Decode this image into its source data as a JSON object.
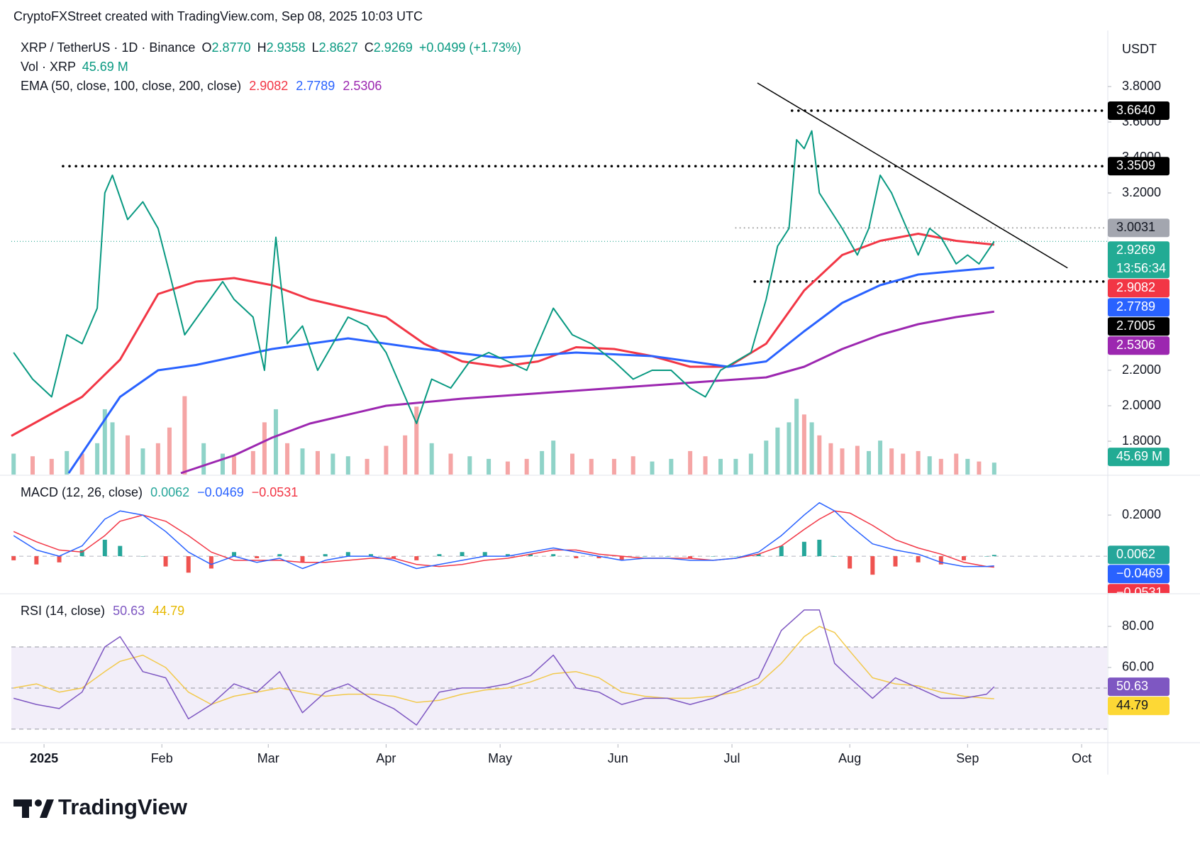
{
  "header": {
    "attribution": "CryptoFXStreet created with TradingView.com, Sep 08, 2025 10:03 UTC",
    "symbol": "XRP / TetherUS · 1D · Binance",
    "ohlc": [
      {
        "label": "O",
        "value": "2.8770"
      },
      {
        "label": "H",
        "value": "2.9358"
      },
      {
        "label": "L",
        "value": "2.8627"
      },
      {
        "label": "C",
        "value": "2.9269"
      }
    ],
    "change": "+0.0499 (+1.73%)",
    "volume_label": "Vol · XRP",
    "volume_value": "45.69 M",
    "ema_label": "EMA (50, close, 100, close, 200, close)",
    "ema_values": [
      "2.9082",
      "2.7789",
      "2.5306"
    ],
    "currency": "USDT",
    "countdown": "13:56:34"
  },
  "logo": "TradingView",
  "chart_data": [
    {
      "type": "line",
      "xlim": [
        -8.6,
        279.7
      ],
      "xticks": [
        {
          "value": 0,
          "label": "2025"
        },
        {
          "value": 31,
          "label": "Feb"
        },
        {
          "value": 59,
          "label": "Mar"
        },
        {
          "value": 90,
          "label": "Apr"
        },
        {
          "value": 120,
          "label": "May"
        },
        {
          "value": 151,
          "label": "Jun"
        },
        {
          "value": 181,
          "label": "Jul"
        },
        {
          "value": 212,
          "label": "Aug"
        },
        {
          "value": 243,
          "label": "Sep"
        },
        {
          "value": 273,
          "label": "Oct"
        }
      ],
      "ylim": [
        1.612,
        4.116
      ],
      "yticks": [
        {
          "value": 1.8,
          "label": "1.8000"
        },
        {
          "value": 2.0,
          "label": "2.0000"
        },
        {
          "value": 2.2,
          "label": "2.2000"
        },
        {
          "value": 3.2,
          "label": "3.2000"
        },
        {
          "value": 3.4,
          "label": "3.4000"
        },
        {
          "value": 3.6,
          "label": "3.6000"
        },
        {
          "value": 3.8,
          "label": "3.8000"
        }
      ],
      "price": {
        "color": "#089981",
        "x": [
          -8,
          -3,
          2,
          6,
          10,
          14,
          16,
          18,
          22,
          26,
          30,
          33,
          37,
          42,
          47,
          50,
          55,
          58,
          61,
          64,
          68,
          72,
          76,
          80,
          85,
          90,
          95,
          98,
          102,
          107,
          112,
          117,
          122,
          127,
          131,
          134,
          139,
          144,
          150,
          155,
          160,
          165,
          170,
          174,
          178,
          182,
          186,
          190,
          193,
          196,
          198,
          200,
          202,
          204,
          207,
          210,
          214,
          217,
          220,
          223,
          226,
          230,
          233,
          236,
          240,
          243,
          246,
          250
        ],
        "values": [
          2.3,
          2.15,
          2.05,
          2.4,
          2.35,
          2.55,
          3.2,
          3.3,
          3.05,
          3.15,
          3.0,
          2.75,
          2.4,
          2.55,
          2.7,
          2.6,
          2.5,
          2.2,
          2.95,
          2.35,
          2.45,
          2.2,
          2.35,
          2.5,
          2.45,
          2.3,
          2.05,
          1.9,
          2.15,
          2.1,
          2.25,
          2.3,
          2.25,
          2.2,
          2.4,
          2.55,
          2.4,
          2.35,
          2.25,
          2.15,
          2.2,
          2.2,
          2.1,
          2.05,
          2.2,
          2.25,
          2.3,
          2.6,
          2.9,
          3.0,
          3.5,
          3.45,
          3.55,
          3.2,
          3.1,
          3.0,
          2.85,
          3.0,
          3.3,
          3.2,
          3.05,
          2.85,
          3.0,
          2.95,
          2.8,
          2.85,
          2.8,
          2.9269
        ]
      },
      "volume": {
        "ylim": [
          0,
          1700
        ],
        "up_color": "#8fd3c8",
        "down_color": "#f5a5a5",
        "values": [
          80,
          70,
          60,
          90,
          80,
          120,
          250,
          200,
          150,
          100,
          120,
          180,
          300,
          120,
          80,
          70,
          90,
          200,
          250,
          120,
          100,
          90,
          80,
          70,
          60,
          110,
          150,
          260,
          120,
          80,
          70,
          60,
          50,
          60,
          90,
          130,
          80,
          60,
          60,
          70,
          50,
          60,
          90,
          70,
          60,
          60,
          80,
          130,
          180,
          200,
          290,
          230,
          200,
          150,
          120,
          100,
          110,
          90,
          130,
          100,
          80,
          90,
          70,
          60,
          80,
          60,
          50,
          45.69
        ]
      },
      "ema": [
        {
          "color": "#f23645",
          "x": [
            -8.6,
            10,
            20,
            30,
            40,
            50,
            60,
            70,
            80,
            90,
            100,
            110,
            120,
            130,
            140,
            150,
            160,
            170,
            180,
            190,
            200,
            210,
            220,
            230,
            240,
            250
          ],
          "values": [
            1.83,
            2.05,
            2.26,
            2.63,
            2.7,
            2.72,
            2.68,
            2.6,
            2.55,
            2.5,
            2.35,
            2.25,
            2.22,
            2.25,
            2.33,
            2.32,
            2.28,
            2.22,
            2.22,
            2.35,
            2.65,
            2.85,
            2.93,
            2.97,
            2.93,
            2.9082
          ]
        },
        {
          "color": "#2962ff",
          "x": [
            6.5,
            20,
            30,
            40,
            60,
            80,
            100,
            120,
            140,
            160,
            180,
            190,
            200,
            210,
            220,
            230,
            240,
            250
          ],
          "values": [
            1.62,
            2.05,
            2.2,
            2.23,
            2.32,
            2.38,
            2.32,
            2.27,
            2.3,
            2.28,
            2.22,
            2.25,
            2.42,
            2.58,
            2.68,
            2.74,
            2.76,
            2.7789
          ]
        },
        {
          "color": "#9c27b0",
          "x": [
            36,
            50,
            60,
            70,
            90,
            110,
            130,
            150,
            170,
            190,
            200,
            210,
            220,
            230,
            240,
            250
          ],
          "values": [
            1.62,
            1.72,
            1.82,
            1.9,
            2.0,
            2.04,
            2.07,
            2.1,
            2.13,
            2.16,
            2.22,
            2.32,
            2.4,
            2.46,
            2.5,
            2.5306
          ]
        }
      ],
      "levels": [
        {
          "value": 3.664,
          "label": "3.6640",
          "from": 196.8,
          "color": "#000000"
        },
        {
          "value": 3.3509,
          "label": "3.3509",
          "from": 5,
          "color": "#000000"
        },
        {
          "value": 3.0031,
          "label": "3.0031",
          "from": 182,
          "color": "#9e9e9e"
        },
        {
          "value": 2.7005,
          "label": "2.7005",
          "from": 187,
          "color": "#000000"
        }
      ],
      "trendline": {
        "x": [
          187.7,
          269.3
        ],
        "y": [
          3.82,
          2.777
        ],
        "color": "#000000"
      }
    },
    {
      "type": "macd",
      "legend_label": "MACD (12, 26, close)",
      "legend_values": [
        "0.0062",
        "−0.0469",
        "−0.0531"
      ],
      "ylim": [
        -0.179,
        0.39
      ],
      "yticks": [
        {
          "value": 0.2,
          "label": "0.2000"
        }
      ],
      "x": [
        -8,
        -2,
        4,
        10,
        16,
        20,
        26,
        32,
        38,
        44,
        50,
        56,
        62,
        68,
        74,
        80,
        86,
        92,
        98,
        104,
        110,
        116,
        122,
        128,
        134,
        140,
        146,
        152,
        158,
        164,
        170,
        176,
        182,
        188,
        194,
        200,
        204,
        208,
        212,
        218,
        224,
        230,
        236,
        242,
        248,
        250
      ],
      "histogram": {
        "up_color": "#26a69a",
        "down_color": "#ef5350",
        "values": [
          -0.02,
          -0.04,
          -0.03,
          0.03,
          0.08,
          0.05,
          0,
          -0.05,
          -0.08,
          -0.06,
          0.02,
          -0.01,
          0.01,
          -0.03,
          0.01,
          0.02,
          0.01,
          -0.01,
          -0.02,
          0.01,
          0.02,
          0.02,
          0.01,
          0.01,
          0.01,
          -0.01,
          -0.01,
          -0.02,
          0,
          0,
          -0.01,
          0,
          0,
          0.01,
          0.05,
          0.07,
          0.08,
          0,
          -0.06,
          -0.09,
          -0.05,
          -0.03,
          -0.04,
          -0.02,
          0,
          0.0062
        ]
      },
      "macd": {
        "color": "#2962ff",
        "values": [
          0.1,
          0.03,
          0.0,
          0.05,
          0.18,
          0.22,
          0.2,
          0.12,
          0.02,
          -0.04,
          0.0,
          -0.03,
          -0.01,
          -0.06,
          -0.02,
          0.0,
          0.0,
          -0.02,
          -0.06,
          -0.04,
          -0.02,
          0.0,
          0.0,
          0.02,
          0.04,
          0.02,
          0.0,
          -0.02,
          -0.01,
          -0.01,
          -0.02,
          -0.02,
          -0.01,
          0.02,
          0.1,
          0.2,
          0.26,
          0.22,
          0.15,
          0.06,
          0.03,
          0.01,
          -0.03,
          -0.05,
          -0.05,
          -0.0469
        ]
      },
      "signal": {
        "color": "#f23645",
        "values": [
          0.12,
          0.07,
          0.03,
          0.02,
          0.1,
          0.17,
          0.2,
          0.17,
          0.1,
          0.02,
          -0.02,
          -0.02,
          -0.02,
          -0.03,
          -0.03,
          -0.02,
          -0.01,
          -0.01,
          -0.04,
          -0.05,
          -0.04,
          -0.02,
          -0.01,
          0.01,
          0.03,
          0.03,
          0.01,
          0.0,
          -0.01,
          -0.01,
          -0.01,
          -0.02,
          -0.01,
          0.01,
          0.05,
          0.13,
          0.18,
          0.22,
          0.21,
          0.15,
          0.08,
          0.04,
          0.01,
          -0.03,
          -0.05,
          -0.0531
        ]
      }
    },
    {
      "type": "rsi",
      "legend_label": "RSI (14, close)",
      "legend_values": [
        "50.63",
        "44.79"
      ],
      "ylim": [
        23.4,
        95.2
      ],
      "yticks": [
        {
          "value": 60,
          "label": "60.00"
        },
        {
          "value": 80,
          "label": "80.00"
        }
      ],
      "bands": [
        30,
        50,
        70
      ],
      "band_color": "#7e57c2",
      "x": [
        -8,
        -2,
        4,
        10,
        16,
        20,
        26,
        32,
        38,
        44,
        50,
        56,
        62,
        68,
        74,
        80,
        86,
        92,
        98,
        104,
        110,
        116,
        122,
        128,
        134,
        140,
        146,
        152,
        158,
        164,
        170,
        176,
        182,
        188,
        194,
        200,
        204,
        208,
        212,
        218,
        224,
        230,
        236,
        242,
        248,
        250
      ],
      "rsi": {
        "color": "#7e57c2",
        "values": [
          45,
          42,
          40,
          48,
          70,
          75,
          58,
          55,
          35,
          42,
          52,
          48,
          58,
          38,
          48,
          52,
          45,
          40,
          32,
          48,
          50,
          50,
          52,
          56,
          66,
          50,
          48,
          42,
          45,
          45,
          42,
          45,
          50,
          55,
          78,
          88,
          88,
          62,
          55,
          45,
          55,
          50,
          45,
          45,
          47,
          50.63
        ]
      },
      "ma": {
        "color": "#f2c94c",
        "values": [
          50,
          52,
          48,
          50,
          58,
          63,
          66,
          60,
          48,
          42,
          46,
          48,
          50,
          48,
          46,
          47,
          47,
          46,
          43,
          44,
          47,
          49,
          50,
          53,
          57,
          58,
          55,
          48,
          46,
          45,
          45,
          46,
          48,
          52,
          62,
          75,
          80,
          77,
          68,
          55,
          52,
          51,
          48,
          46,
          45,
          44.79
        ]
      }
    }
  ]
}
